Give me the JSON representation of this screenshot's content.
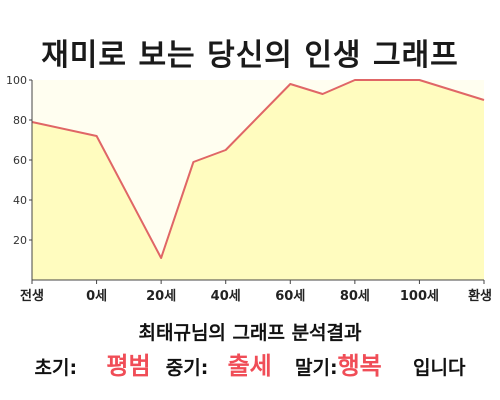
{
  "chart_data": {
    "type": "area",
    "title": "재미로 보는 당신의 인생 그래프",
    "x": [
      -20,
      0,
      20,
      30,
      40,
      60,
      70,
      80,
      100,
      120
    ],
    "values": [
      79,
      72,
      11,
      59,
      65,
      98,
      93,
      100,
      100,
      90
    ],
    "xticks": [
      {
        "x": -20,
        "label": "전생"
      },
      {
        "x": 0,
        "label": "0세"
      },
      {
        "x": 20,
        "label": "20세"
      },
      {
        "x": 40,
        "label": "40세"
      },
      {
        "x": 60,
        "label": "60세"
      },
      {
        "x": 80,
        "label": "80세"
      },
      {
        "x": 100,
        "label": "100세"
      },
      {
        "x": 120,
        "label": "환생"
      }
    ],
    "yticks": [
      20,
      40,
      60,
      80,
      100
    ],
    "xlim": [
      -20,
      120
    ],
    "ylim": [
      0,
      100
    ],
    "grid": false,
    "colors": {
      "fill": "#fffcbf",
      "line": "#e06666"
    }
  },
  "result": {
    "title": "최태규님의 그래프 분석결과",
    "early_label": "초기:",
    "early_value": "평범",
    "middle_label": "중기:",
    "middle_value": "출세",
    "late_label": "말기:",
    "late_value": "행복",
    "suffix": "입니다",
    "highlight_color": "#f04d57"
  }
}
